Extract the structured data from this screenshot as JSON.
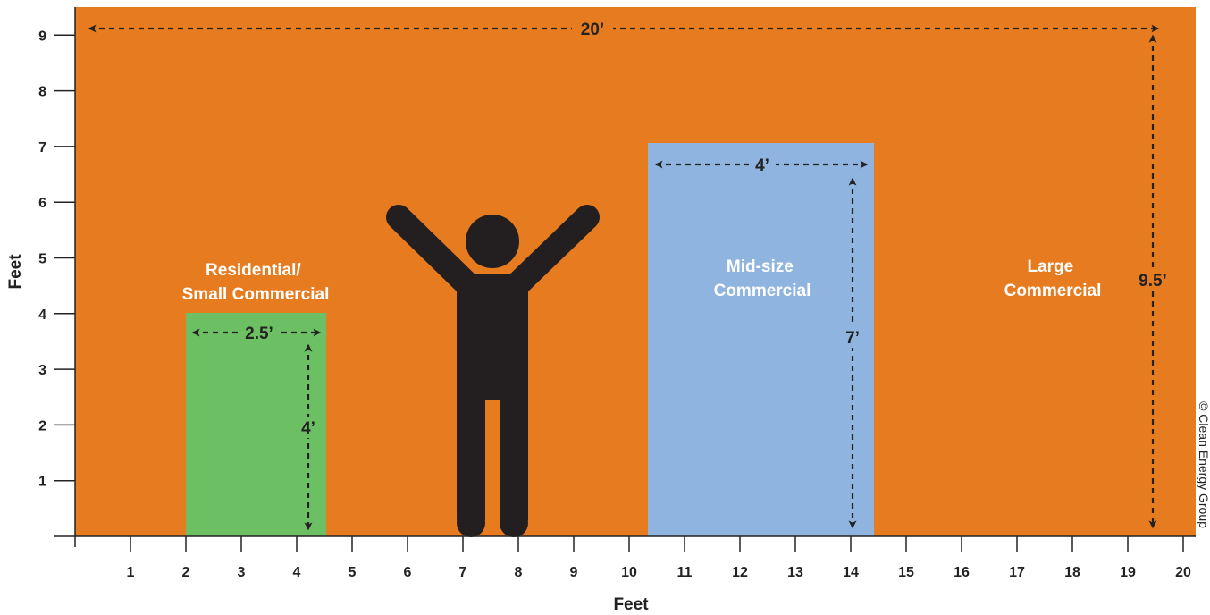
{
  "colors": {
    "background": "#e77b1f",
    "residential": "#6cbf63",
    "midsize": "#8fb4df",
    "figure": "#231f20",
    "text_dark": "#222222",
    "text_light": "#ffffff"
  },
  "axes": {
    "x_title": "Feet",
    "y_title": "Feet",
    "x_range": [
      0,
      20
    ],
    "y_range": [
      0,
      9.5
    ],
    "x_ticks": [
      1,
      2,
      3,
      4,
      5,
      6,
      7,
      8,
      9,
      10,
      11,
      12,
      13,
      14,
      15,
      16,
      17,
      18,
      19,
      20
    ],
    "y_ticks": [
      1,
      2,
      3,
      4,
      5,
      6,
      7,
      8,
      9
    ]
  },
  "labels": {
    "large_width": "20’",
    "large_height": "9.5’",
    "residential_width": "2.5’",
    "residential_height": "4’",
    "midsize_width": "4’",
    "midsize_height": "7’"
  },
  "categories": {
    "residential": {
      "line1": "Residential/",
      "line2": "Small Commercial",
      "width_ft": 2.5,
      "height_ft": 4
    },
    "midsize": {
      "line1": "Mid-size",
      "line2": "Commercial",
      "width_ft": 4,
      "height_ft": 7
    },
    "large": {
      "line1": "Large",
      "line2": "Commercial",
      "width_ft": 20,
      "height_ft": 9.5
    }
  },
  "copyright": "© Clean Energy Group"
}
